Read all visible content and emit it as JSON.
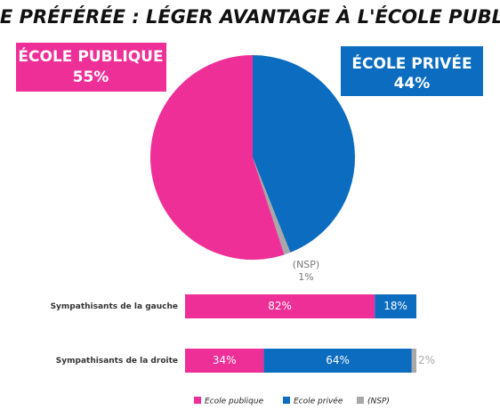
{
  "title": "ECOLE PRÉFÉRÉE : LÉGER AVANTAGE À L'ÉCOLE PUBLIQUE",
  "chart_data": [
    {
      "type": "pie",
      "categories": [
        "ÉCOLE PUBLIQUE",
        "ÉCOLE PRIVÉE",
        "(NSP)"
      ],
      "values": [
        55,
        44,
        1
      ],
      "value_labels": [
        "55%",
        "44%",
        "1%"
      ],
      "colors": [
        "#ef2f98",
        "#0b6cc0",
        "#a8a8a8"
      ]
    },
    {
      "type": "stacked-bar-horizontal",
      "categories": [
        "Sympathisants de la gauche",
        "Sympathisants de la droite"
      ],
      "series": [
        {
          "name": "Ecole publique",
          "color": "#ef2f98",
          "values": [
            82,
            34
          ],
          "value_labels": [
            "82%",
            "34%"
          ]
        },
        {
          "name": "Ecole privée",
          "color": "#0b6cc0",
          "values": [
            18,
            64
          ],
          "value_labels": [
            "18%",
            "64%"
          ]
        },
        {
          "name": "(NSP)",
          "color": "#a8a8a8",
          "values": [
            null,
            2
          ],
          "value_labels": [
            null,
            "2%"
          ]
        }
      ],
      "xlim": [
        0,
        100
      ],
      "legend": "bottom"
    }
  ]
}
